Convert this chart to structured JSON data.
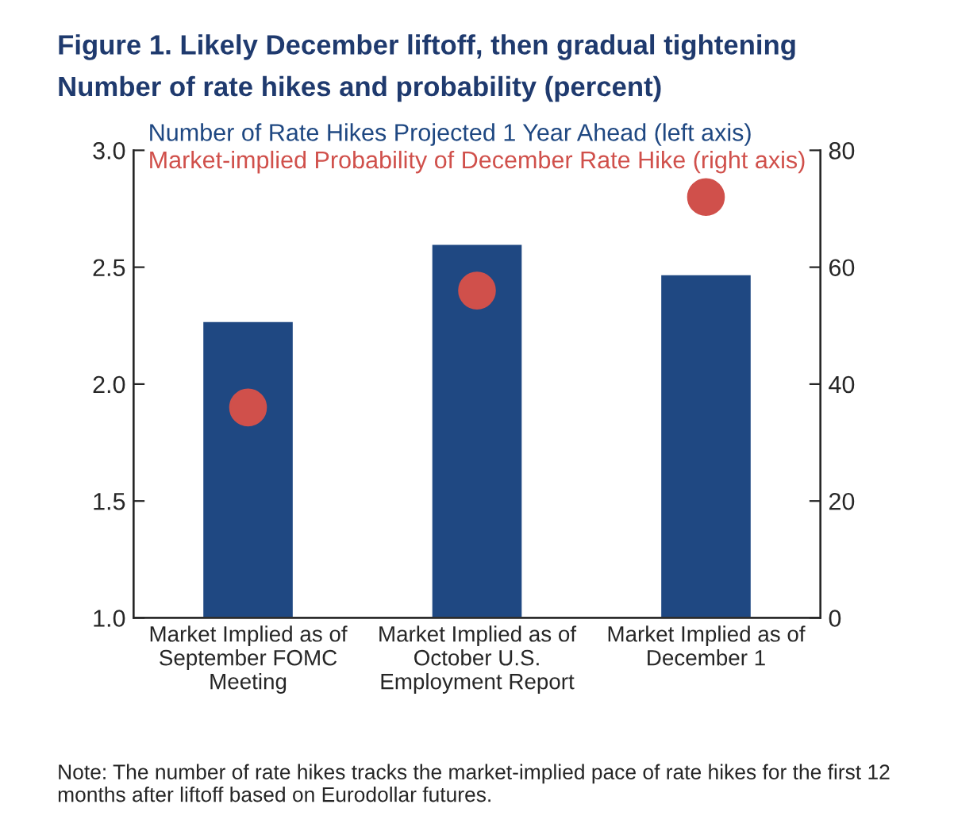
{
  "chart_data": {
    "type": "bar",
    "title": "Figure 1. Likely December liftoff, then gradual tightening",
    "subtitle": "Number of rate hikes and probability (percent)",
    "categories": [
      "Market Implied as of\nSeptember FOMC\nMeeting",
      "Market Implied as of\nOctober U.S.\nEmployment Report",
      "Market Implied as of\nDecember 1"
    ],
    "series": [
      {
        "name": "Number of Rate Hikes Projected 1 Year Ahead (left axis)",
        "color": "#1f4882",
        "values": [
          2.27,
          2.6,
          2.47
        ]
      },
      {
        "name": "Market-implied Probability of December Rate Hike (right axis)",
        "type": "scatter",
        "axis": "y2",
        "color": "#d0504b",
        "values": [
          36,
          56,
          72
        ]
      }
    ],
    "ylim": [
      1.0,
      3.0
    ],
    "yticks": [
      {
        "value": 1.0,
        "label": "1.0"
      },
      {
        "value": 1.5,
        "label": "1.5"
      },
      {
        "value": 2.0,
        "label": "2.0"
      },
      {
        "value": 2.5,
        "label": "2.5"
      },
      {
        "value": 3.0,
        "label": "3.0"
      }
    ],
    "y2lim": [
      0,
      80
    ],
    "y2ticks": [
      0,
      20,
      40,
      60,
      80
    ],
    "legend": "top",
    "grid": false,
    "annotations": [
      "Note: The number of rate hikes tracks the market-implied pace of rate hikes for the first 12 months after liftoff based on Eurodollar futures."
    ]
  }
}
